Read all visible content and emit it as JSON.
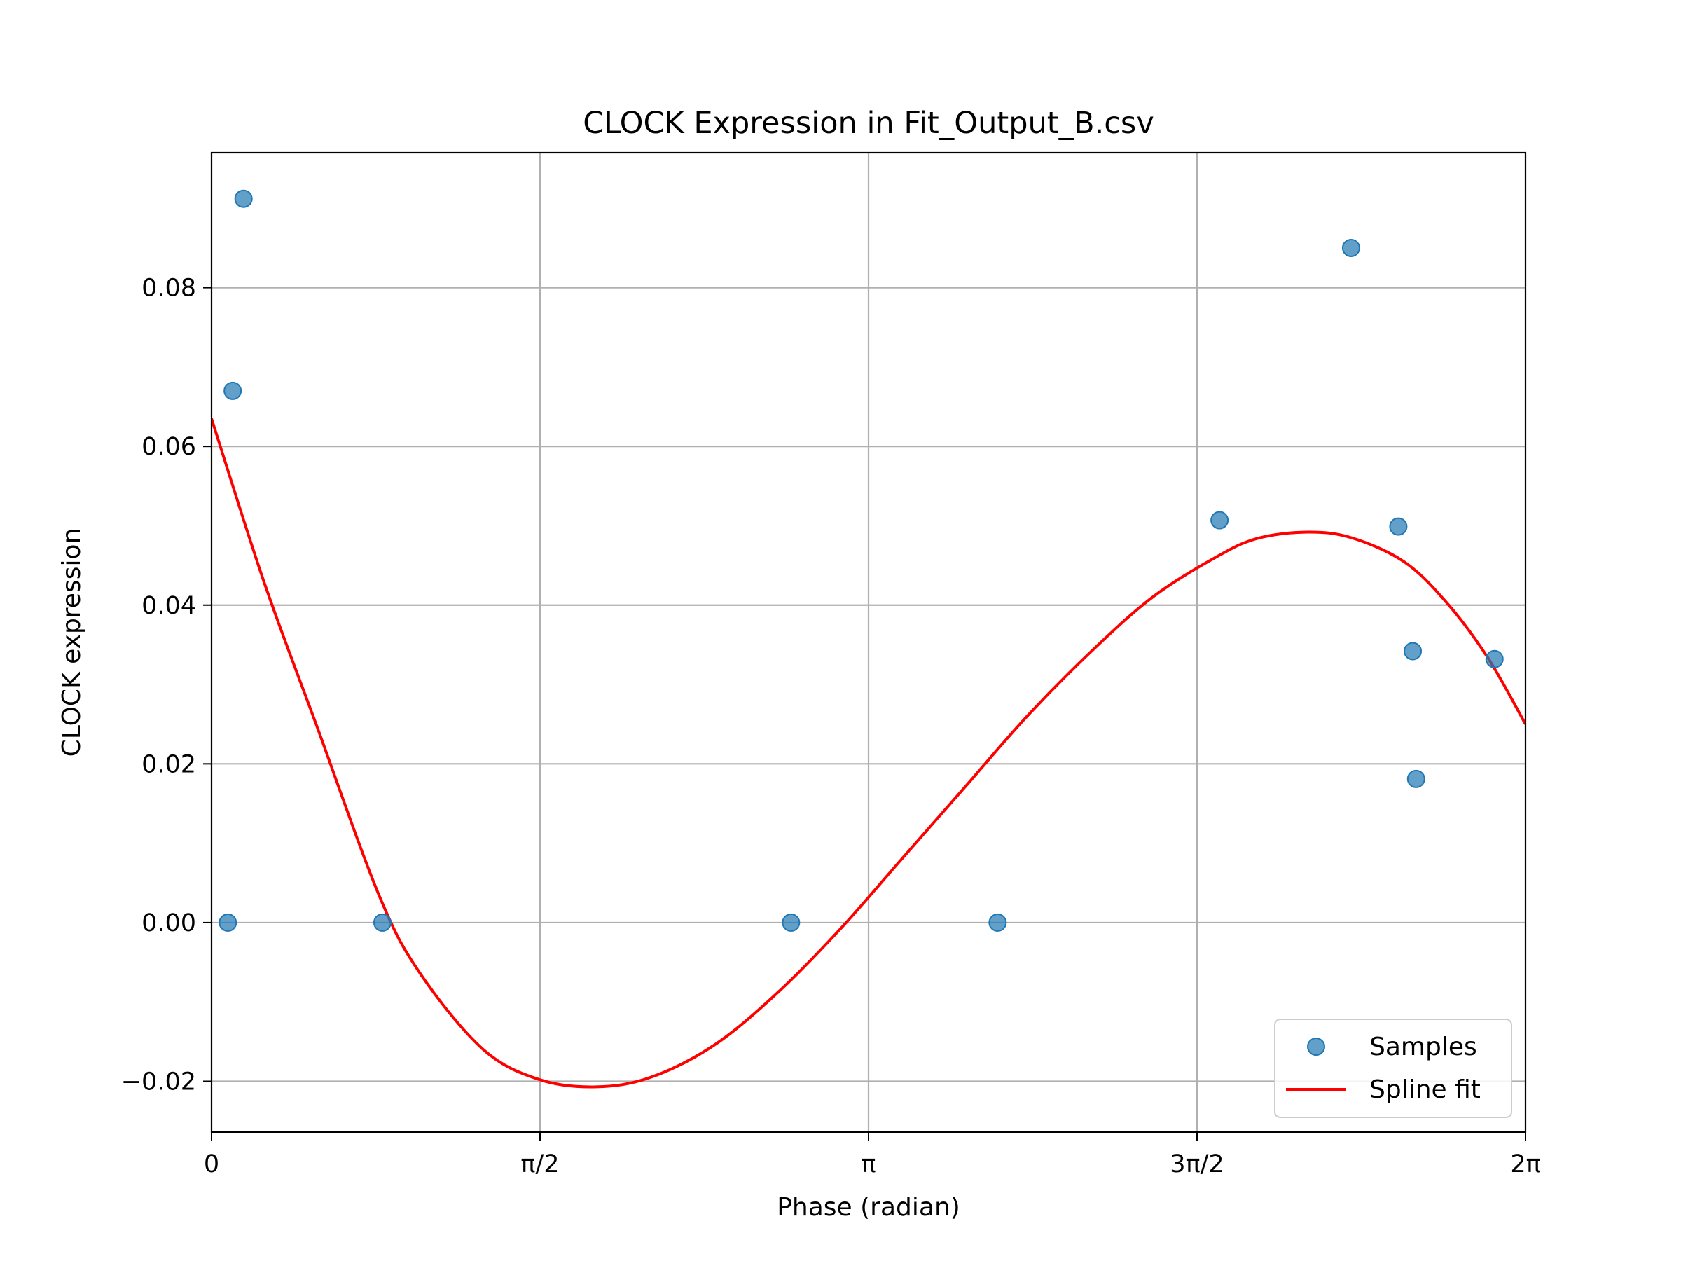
{
  "chart_data": {
    "type": "scatter",
    "title": "CLOCK Expression in Fit_Output_B.csv",
    "xlabel": "Phase (radian)",
    "ylabel": "CLOCK expression",
    "xlim": [
      0,
      6.2832
    ],
    "ylim": [
      -0.0264,
      0.097
    ],
    "grid": true,
    "legend_position": "lower-right",
    "x_ticks": [
      {
        "value": 0,
        "label": "0"
      },
      {
        "value": 1.5708,
        "label": "π/2"
      },
      {
        "value": 3.1416,
        "label": "π"
      },
      {
        "value": 4.7124,
        "label": "3π/2"
      },
      {
        "value": 6.2832,
        "label": "2π"
      }
    ],
    "y_ticks": [
      {
        "value": -0.02,
        "label": "−0.02"
      },
      {
        "value": 0.0,
        "label": "0.00"
      },
      {
        "value": 0.02,
        "label": "0.02"
      },
      {
        "value": 0.04,
        "label": "0.04"
      },
      {
        "value": 0.06,
        "label": "0.06"
      },
      {
        "value": 0.08,
        "label": "0.08"
      }
    ],
    "series": [
      {
        "name": "Samples",
        "kind": "scatter",
        "color": "#1f77b4",
        "points": [
          {
            "x": 0.078,
            "y": 0.0
          },
          {
            "x": 0.101,
            "y": 0.067
          },
          {
            "x": 0.153,
            "y": 0.0912
          },
          {
            "x": 0.817,
            "y": 0.0
          },
          {
            "x": 2.771,
            "y": 0.0
          },
          {
            "x": 3.759,
            "y": 0.0
          },
          {
            "x": 4.82,
            "y": 0.0507
          },
          {
            "x": 5.449,
            "y": 0.085
          },
          {
            "x": 5.675,
            "y": 0.0499
          },
          {
            "x": 5.744,
            "y": 0.0342
          },
          {
            "x": 5.76,
            "y": 0.0181
          },
          {
            "x": 6.135,
            "y": 0.0332
          }
        ]
      },
      {
        "name": "Spline fit",
        "kind": "line",
        "color": "#ff0000",
        "points": [
          {
            "x": 0.0,
            "y": 0.0635
          },
          {
            "x": 0.25,
            "y": 0.043
          },
          {
            "x": 0.5,
            "y": 0.025
          },
          {
            "x": 0.8,
            "y": 0.0035
          },
          {
            "x": 1.0,
            "y": -0.0065
          },
          {
            "x": 1.3,
            "y": -0.016
          },
          {
            "x": 1.57,
            "y": -0.0198
          },
          {
            "x": 1.84,
            "y": -0.0207
          },
          {
            "x": 2.1,
            "y": -0.0195
          },
          {
            "x": 2.4,
            "y": -0.0155
          },
          {
            "x": 2.7,
            "y": -0.009
          },
          {
            "x": 3.0,
            "y": -0.001
          },
          {
            "x": 3.3,
            "y": 0.008
          },
          {
            "x": 3.6,
            "y": 0.017
          },
          {
            "x": 3.9,
            "y": 0.026
          },
          {
            "x": 4.2,
            "y": 0.034
          },
          {
            "x": 4.5,
            "y": 0.041
          },
          {
            "x": 4.8,
            "y": 0.046
          },
          {
            "x": 5.0,
            "y": 0.0484
          },
          {
            "x": 5.24,
            "y": 0.0492
          },
          {
            "x": 5.45,
            "y": 0.0485
          },
          {
            "x": 5.7,
            "y": 0.0455
          },
          {
            "x": 5.9,
            "y": 0.0405
          },
          {
            "x": 6.1,
            "y": 0.0335
          },
          {
            "x": 6.2832,
            "y": 0.025
          }
        ]
      }
    ]
  }
}
